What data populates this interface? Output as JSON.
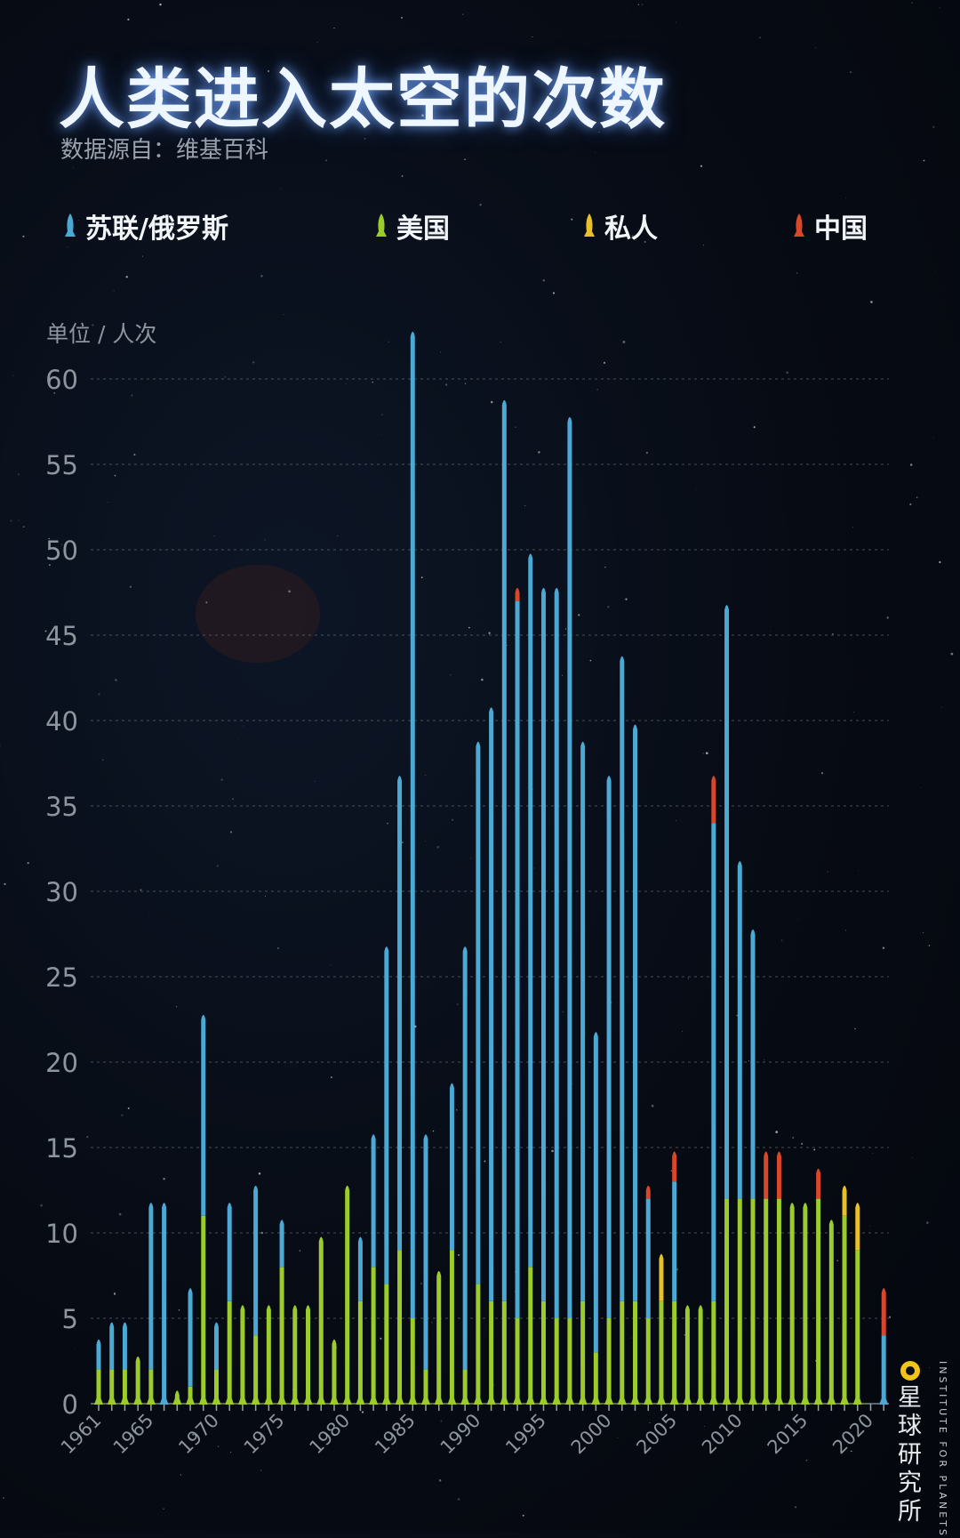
{
  "title": "人类进入太空的次数",
  "source": "数据源自：维基百科",
  "unit_label": "单位 / 人次",
  "legend": [
    {
      "label": "苏联/俄罗斯",
      "color": "#4ca9d4"
    },
    {
      "label": "美国",
      "color": "#9ccc2c"
    },
    {
      "label": "私人",
      "color": "#e8c02a"
    },
    {
      "label": "中国",
      "color": "#d9472b"
    }
  ],
  "brand": {
    "name_cn": "星球研究所",
    "name_en": "INSTITUTE FOR PLANETS"
  },
  "chart_data": {
    "type": "bar",
    "stacked": true,
    "ylim": [
      0,
      63
    ],
    "yticks": [
      0,
      5,
      10,
      15,
      20,
      25,
      30,
      35,
      40,
      45,
      50,
      55,
      60
    ],
    "xtick_labels": [
      "1961",
      "1965",
      "1970",
      "1975",
      "1980",
      "1985",
      "1990",
      "1995",
      "2000",
      "2005",
      "2010",
      "2015",
      "2020"
    ],
    "grid": true,
    "categories": [
      1961,
      1962,
      1963,
      1964,
      1965,
      1966,
      1967,
      1968,
      1969,
      1970,
      1971,
      1972,
      1973,
      1974,
      1975,
      1976,
      1977,
      1978,
      1979,
      1980,
      1981,
      1982,
      1983,
      1984,
      1985,
      1986,
      1987,
      1988,
      1989,
      1990,
      1991,
      1992,
      1993,
      1994,
      1995,
      1996,
      1997,
      1998,
      1999,
      2000,
      2001,
      2002,
      2003,
      2004,
      2005,
      2006,
      2007,
      2008,
      2009,
      2010,
      2011,
      2012,
      2013,
      2014,
      2015,
      2016,
      2017,
      2018,
      2019,
      2020,
      2021
    ],
    "series": [
      {
        "name": "美国",
        "color": "#9ccc2c",
        "values": [
          2,
          2,
          2,
          3,
          2,
          0,
          1,
          1,
          11,
          2,
          6,
          6,
          4,
          6,
          8,
          6,
          6,
          10,
          4,
          13,
          6,
          8,
          7,
          9,
          5,
          2,
          8,
          9,
          2,
          7,
          6,
          6,
          5,
          8,
          6,
          5,
          5,
          6,
          3,
          5,
          6,
          6,
          5,
          6,
          6,
          6,
          6,
          6,
          12,
          12,
          12,
          12,
          12,
          12,
          12,
          12,
          11,
          11,
          9,
          0,
          0
        ]
      },
      {
        "name": "苏联/俄罗斯",
        "color": "#4ca9d4",
        "values": [
          2,
          3,
          3,
          0,
          10,
          12,
          0,
          6,
          12,
          3,
          6,
          0,
          9,
          0,
          3,
          0,
          0,
          0,
          0,
          0,
          4,
          8,
          20,
          28,
          58,
          14,
          0,
          10,
          25,
          32,
          35,
          53,
          42,
          42,
          42,
          43,
          53,
          33,
          19,
          32,
          38,
          34,
          7,
          0,
          7,
          0,
          0,
          28,
          35,
          20,
          16,
          0,
          0,
          0,
          0,
          0,
          0,
          0,
          0,
          0,
          4
        ]
      },
      {
        "name": "私人",
        "color": "#e8c02a",
        "values": [
          0,
          0,
          0,
          0,
          0,
          0,
          0,
          0,
          0,
          0,
          0,
          0,
          0,
          0,
          0,
          0,
          0,
          0,
          0,
          0,
          0,
          0,
          0,
          0,
          0,
          0,
          0,
          0,
          0,
          0,
          0,
          0,
          0,
          0,
          0,
          0,
          0,
          0,
          0,
          0,
          0,
          0,
          0,
          3,
          0,
          0,
          0,
          0,
          0,
          0,
          0,
          0,
          0,
          0,
          0,
          0,
          0,
          2,
          3,
          0,
          0
        ]
      },
      {
        "name": "中国",
        "color": "#d9472b",
        "values": [
          0,
          0,
          0,
          0,
          0,
          0,
          0,
          0,
          0,
          0,
          0,
          0,
          0,
          0,
          0,
          0,
          0,
          0,
          0,
          0,
          0,
          0,
          0,
          0,
          0,
          0,
          0,
          0,
          0,
          0,
          0,
          0,
          1,
          0,
          0,
          0,
          0,
          0,
          0,
          0,
          0,
          0,
          1,
          0,
          2,
          0,
          0,
          3,
          0,
          0,
          0,
          3,
          3,
          0,
          0,
          2,
          0,
          0,
          0,
          0,
          3
        ]
      }
    ]
  }
}
